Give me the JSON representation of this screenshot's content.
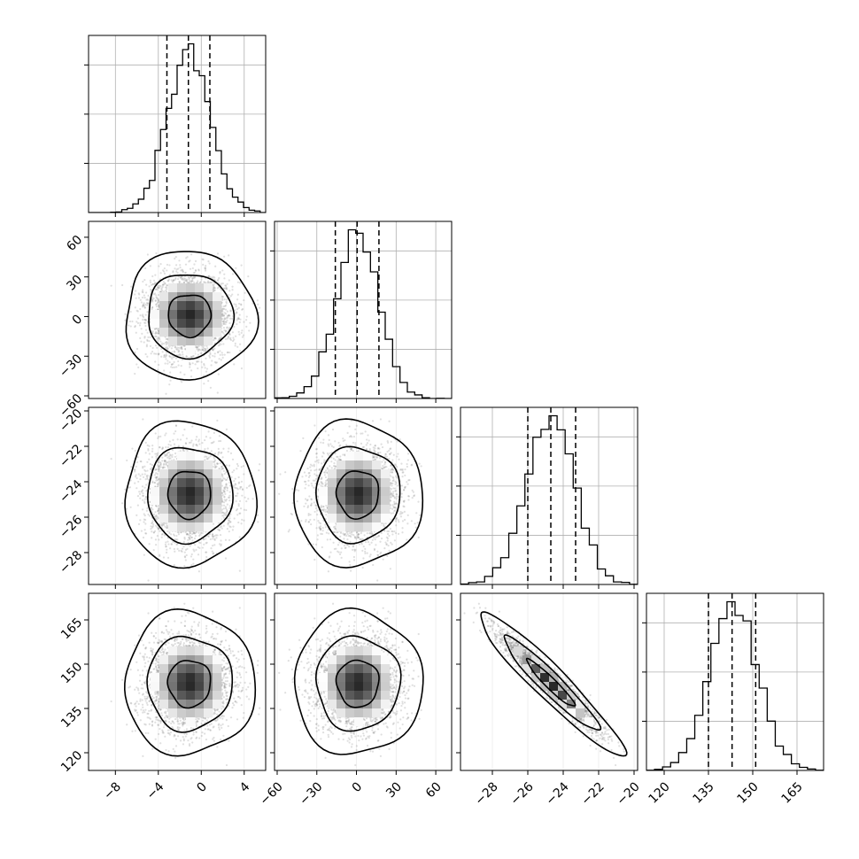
{
  "chart_data": {
    "type": "corner",
    "params": [
      {
        "id": "p1",
        "mean": -1.1,
        "sd": 2.0,
        "range": [
          -10.5,
          6.0
        ],
        "ticks": [
          -8,
          -4,
          0,
          4
        ],
        "quantiles": [
          -3.2,
          -1.2,
          0.8
        ],
        "hist_bins": 32,
        "x_tick_labels": [
          "−8",
          "−4",
          "0",
          "4"
        ],
        "y_tick_labels": []
      },
      {
        "id": "p2",
        "mean": 1.0,
        "sd": 16.0,
        "range": [
          -62,
          72
        ],
        "ticks": [
          -60,
          -30,
          0,
          30,
          60
        ],
        "quantiles": [
          -16.0,
          0.5,
          17.0
        ],
        "hist_bins": 24,
        "x_tick_labels": [
          "−60",
          "−30",
          "0",
          "30",
          "60"
        ],
        "y_tick_labels": [
          "60",
          "30",
          "0",
          "−30",
          "−60"
        ]
      },
      {
        "id": "p3",
        "mean": -24.7,
        "sd": 1.35,
        "range": [
          -29.8,
          -19.8
        ],
        "ticks": [
          -28,
          -26,
          -24,
          -22,
          -20
        ],
        "quantiles": [
          -26.0,
          -24.7,
          -23.3
        ],
        "hist_bins": 22,
        "x_tick_labels": [
          "−28",
          "−26",
          "−24",
          "−22",
          "−20"
        ],
        "y_tick_labels": [
          "−20",
          "−22",
          "−24",
          "−26",
          "−28"
        ]
      },
      {
        "id": "p4",
        "mean": 143.5,
        "sd": 8.0,
        "range": [
          114,
          174
        ],
        "ticks": [
          120,
          135,
          150,
          165
        ],
        "quantiles": [
          135.0,
          143.0,
          151.0
        ],
        "hist_bins": 22,
        "x_tick_labels": [
          "120",
          "135",
          "150",
          "165"
        ],
        "y_tick_labels": [
          "165",
          "150",
          "135",
          "120"
        ]
      }
    ],
    "correlations": [
      {
        "pair": [
          "p1",
          "p2"
        ],
        "rho": 0.0
      },
      {
        "pair": [
          "p1",
          "p3"
        ],
        "rho": 0.0
      },
      {
        "pair": [
          "p2",
          "p3"
        ],
        "rho": 0.0
      },
      {
        "pair": [
          "p1",
          "p4"
        ],
        "rho": 0.0
      },
      {
        "pair": [
          "p2",
          "p4"
        ],
        "rho": 0.0
      },
      {
        "pair": [
          "p3",
          "p4"
        ],
        "rho": -0.95
      }
    ],
    "contour_levels": [
      0.39,
      0.86,
      0.99
    ],
    "grid": true,
    "colors": {
      "line": "#000000",
      "grid": "#b0b0b0",
      "scatter": "#808080",
      "density_dark": "#000000",
      "background": "#ffffff"
    }
  }
}
